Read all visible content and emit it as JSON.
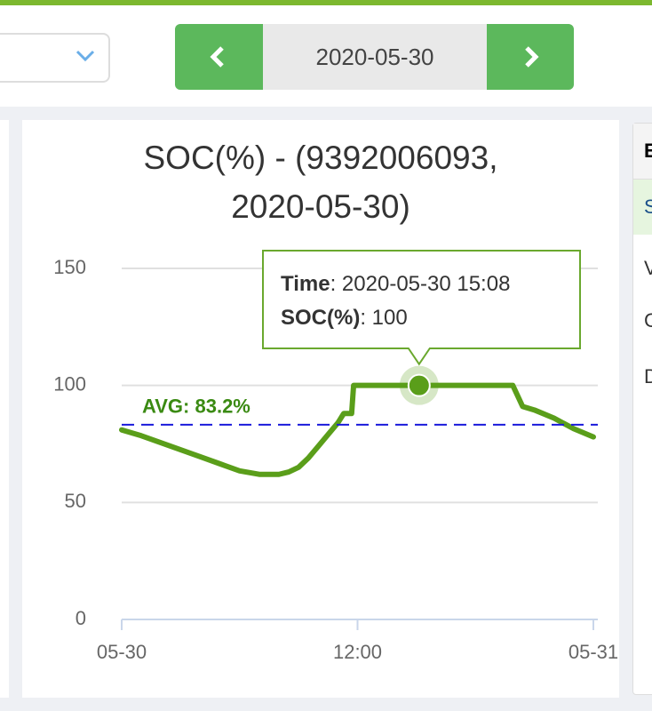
{
  "date_nav": {
    "date": "2020-05-30"
  },
  "chart_data": {
    "type": "line",
    "title": [
      "SOC(%) - (9392006093,",
      "2020-05-30)"
    ],
    "x": [
      0,
      1,
      2,
      3,
      4,
      5,
      6,
      7,
      8,
      8.5,
      9,
      9.5,
      10,
      10.5,
      11,
      11.3,
      11.7,
      11.8,
      13,
      15.133,
      16,
      17,
      18,
      19,
      19.9,
      20.4,
      21,
      22,
      23,
      24
    ],
    "series": [
      {
        "name": "SOC(%)",
        "color": "#5a9e1a",
        "values": [
          81,
          78.5,
          75.5,
          72.5,
          69.5,
          66.5,
          63.5,
          62,
          62,
          63,
          65,
          69,
          74,
          79,
          84,
          88,
          88,
          100,
          100,
          100,
          100,
          100,
          100,
          100,
          100,
          91,
          89.5,
          86,
          81.5,
          78
        ]
      }
    ],
    "xlim": [
      0,
      24
    ],
    "xticks": [
      {
        "value": 0,
        "label": "05-30"
      },
      {
        "value": 12,
        "label": "12:00"
      },
      {
        "value": 24,
        "label": "05-31"
      }
    ],
    "ylim": [
      0,
      150
    ],
    "yticks": [
      0,
      50,
      100,
      150
    ],
    "grid": true,
    "avg": {
      "value": 83.2,
      "label": "AVG: 83.2%",
      "color": "#1a1adb"
    },
    "tooltip": {
      "time_key": "Time",
      "time": ": 2020-05-30 15:08",
      "soc_key": "SOC(%)",
      "soc": ": 100"
    }
  },
  "side_panel": {
    "header": "E",
    "items": [
      "S",
      "V",
      "C",
      "D"
    ]
  }
}
